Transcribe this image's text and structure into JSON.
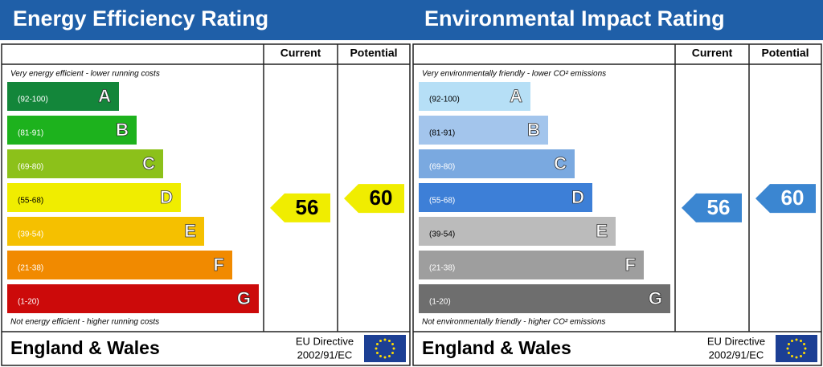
{
  "chart_data": [
    {
      "type": "epc",
      "title": "Energy Efficiency Rating",
      "columns": [
        "Current",
        "Potential"
      ],
      "top_note": "Very energy efficient - lower running costs",
      "bottom_note": "Not energy efficient - higher running costs",
      "bands": [
        {
          "range": "(92-100)",
          "letter": "A",
          "color": "#13863a",
          "label_color": "#ffffff"
        },
        {
          "range": "(81-91)",
          "letter": "B",
          "color": "#1db21d",
          "label_color": "#ffffff"
        },
        {
          "range": "(69-80)",
          "letter": "C",
          "color": "#8cc11a",
          "label_color": "#ffffff"
        },
        {
          "range": "(55-68)",
          "letter": "D",
          "color": "#f0ed00",
          "label_color": "#000000"
        },
        {
          "range": "(39-54)",
          "letter": "E",
          "color": "#f5c000",
          "label_color": "#ffffff"
        },
        {
          "range": "(21-38)",
          "letter": "F",
          "color": "#f18a00",
          "label_color": "#ffffff"
        },
        {
          "range": "(1-20)",
          "letter": "G",
          "color": "#cc0a0a",
          "label_color": "#ffffff"
        }
      ],
      "current": 56,
      "potential": 60,
      "arrow_color": "#f0ed00",
      "arrow_text_color": "#000000",
      "footer": "England & Wales",
      "directive": "EU Directive",
      "directive_code": "2002/91/EC"
    },
    {
      "type": "epc",
      "title": "Environmental Impact Rating",
      "columns": [
        "Current",
        "Potential"
      ],
      "top_note": "Very environmentally friendly - lower CO² emissions",
      "bottom_note": "Not environmentally friendly - higher CO² emissions",
      "bands": [
        {
          "range": "(92-100)",
          "letter": "A",
          "color": "#b6dff6",
          "label_color": "#000000"
        },
        {
          "range": "(81-91)",
          "letter": "B",
          "color": "#a3c5ec",
          "label_color": "#000000"
        },
        {
          "range": "(69-80)",
          "letter": "C",
          "color": "#7aa9e0",
          "label_color": "#ffffff"
        },
        {
          "range": "(55-68)",
          "letter": "D",
          "color": "#3d7fd7",
          "label_color": "#ffffff"
        },
        {
          "range": "(39-54)",
          "letter": "E",
          "color": "#bbbbbb",
          "label_color": "#000000"
        },
        {
          "range": "(21-38)",
          "letter": "F",
          "color": "#9e9e9e",
          "label_color": "#ffffff"
        },
        {
          "range": "(1-20)",
          "letter": "G",
          "color": "#6e6e6e",
          "label_color": "#ffffff"
        }
      ],
      "current": 56,
      "potential": 60,
      "arrow_color": "#3b86d1",
      "arrow_text_color": "#ffffff",
      "footer": "England & Wales",
      "directive": "EU Directive",
      "directive_code": "2002/91/EC"
    }
  ]
}
